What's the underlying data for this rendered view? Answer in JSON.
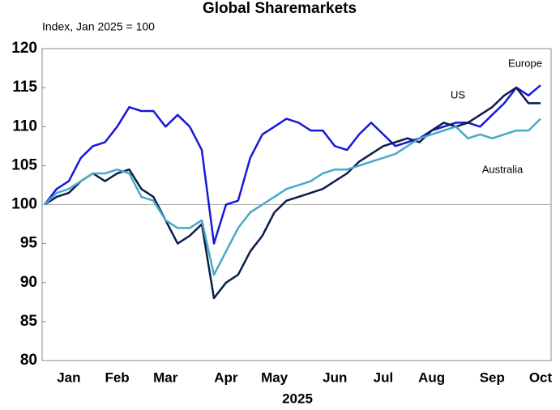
{
  "chart_data": {
    "type": "line",
    "title": "Global Sharemarkets",
    "subtitle": "Index, Jan 2025 = 100",
    "xlabel": "2025",
    "categories": [
      null,
      null,
      "Jan",
      null,
      null,
      null,
      "Feb",
      null,
      null,
      null,
      "Mar",
      null,
      null,
      null,
      null,
      "Apr",
      null,
      null,
      null,
      "May",
      null,
      null,
      null,
      null,
      "Jun",
      null,
      null,
      null,
      "Jul",
      null,
      null,
      null,
      "Aug",
      null,
      null,
      null,
      null,
      "Sep",
      null,
      null,
      null,
      "Oct"
    ],
    "series": [
      {
        "name": "Europe",
        "color": "#1818d8",
        "values": [
          100,
          102,
          103,
          106,
          107.5,
          108,
          110,
          112.5,
          112,
          112,
          110,
          111.5,
          110,
          107,
          95,
          100,
          100.5,
          106,
          109,
          110,
          111,
          110.5,
          109.5,
          109.5,
          107.5,
          107,
          109,
          110.5,
          109,
          107.5,
          108,
          108.5,
          109.5,
          110,
          110.5,
          110.5,
          110,
          111.5,
          113,
          115,
          114,
          115.3
        ]
      },
      {
        "name": "US",
        "color": "#0c1d4a",
        "values": [
          100,
          101,
          101.5,
          103,
          104,
          103,
          104,
          104.5,
          102,
          101,
          98,
          95,
          96,
          97.5,
          88,
          90,
          91,
          94,
          96,
          99,
          100.5,
          101,
          101.5,
          102,
          103,
          104,
          105.5,
          106.5,
          107.5,
          108,
          108.5,
          108,
          109.5,
          110.5,
          110,
          110.5,
          111.5,
          112.5,
          114,
          115,
          113,
          113
        ]
      },
      {
        "name": "Australia",
        "color": "#4aa8c8",
        "values": [
          100,
          101.5,
          102,
          103,
          104,
          104,
          104.5,
          104,
          101,
          100.5,
          98,
          97,
          97,
          98,
          91,
          94,
          97,
          99,
          100,
          101,
          102,
          102.5,
          103,
          104,
          104.5,
          104.5,
          105,
          105.5,
          106,
          106.5,
          107.5,
          108.5,
          109,
          109.5,
          110,
          108.5,
          109,
          108.5,
          109,
          109.5,
          109.5,
          111
        ]
      }
    ],
    "ylim": [
      80,
      120
    ],
    "yticks": [
      80,
      85,
      90,
      95,
      100,
      105,
      110,
      115,
      120
    ],
    "hline": 100
  }
}
